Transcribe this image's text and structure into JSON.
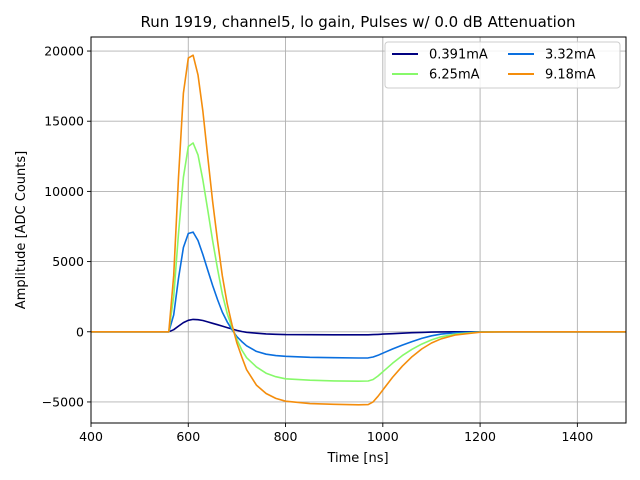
{
  "chart_data": {
    "type": "line",
    "title": "Run 1919, channel5, lo gain, Pulses w/ 0.0 dB Attenuation",
    "xlabel": "Time [ns]",
    "ylabel": "Amplitude [ADC Counts]",
    "xlim": [
      400,
      1500
    ],
    "ylim": [
      -6500,
      21000
    ],
    "xticks": [
      400,
      600,
      800,
      1000,
      1200,
      1400
    ],
    "yticks": [
      -5000,
      0,
      5000,
      10000,
      15000,
      20000
    ],
    "ytick_labels": [
      "−5000",
      "0",
      "5000",
      "10000",
      "15000",
      "20000"
    ],
    "grid": true,
    "legend_position": "top-right",
    "legend_columns": 2,
    "series": [
      {
        "name": "0.391mA",
        "color": "#000080",
        "x": [
          400,
          500,
          560,
          570,
          580,
          590,
          600,
          610,
          620,
          630,
          640,
          650,
          660,
          670,
          680,
          690,
          700,
          710,
          720,
          740,
          760,
          780,
          800,
          850,
          900,
          950,
          970,
          980,
          990,
          1000,
          1020,
          1040,
          1060,
          1080,
          1100,
          1120,
          1150,
          1200,
          1250,
          1300,
          1400,
          1500
        ],
        "values": [
          0,
          0,
          0,
          150,
          400,
          650,
          820,
          880,
          860,
          800,
          700,
          600,
          500,
          400,
          300,
          200,
          100,
          20,
          -40,
          -100,
          -150,
          -180,
          -200,
          -210,
          -215,
          -218,
          -215,
          -200,
          -185,
          -170,
          -135,
          -100,
          -70,
          -45,
          -25,
          -12,
          -4,
          0,
          0,
          0,
          0,
          0
        ]
      },
      {
        "name": "3.32mA",
        "color": "#0a6fdf",
        "x": [
          400,
          500,
          560,
          570,
          580,
          590,
          600,
          610,
          620,
          630,
          640,
          650,
          660,
          670,
          680,
          690,
          700,
          710,
          720,
          740,
          760,
          780,
          800,
          850,
          900,
          950,
          970,
          980,
          990,
          1000,
          1020,
          1040,
          1060,
          1080,
          1100,
          1120,
          1150,
          1200,
          1250,
          1300,
          1400,
          1500
        ],
        "values": [
          0,
          0,
          0,
          1200,
          3800,
          6000,
          7000,
          7100,
          6500,
          5500,
          4400,
          3300,
          2300,
          1400,
          700,
          150,
          -350,
          -700,
          -1000,
          -1400,
          -1600,
          -1700,
          -1750,
          -1820,
          -1850,
          -1870,
          -1860,
          -1800,
          -1680,
          -1530,
          -1230,
          -950,
          -700,
          -470,
          -290,
          -170,
          -70,
          -5,
          0,
          0,
          0,
          0
        ]
      },
      {
        "name": "6.25mA",
        "color": "#87f96a",
        "x": [
          400,
          500,
          560,
          570,
          580,
          590,
          600,
          610,
          620,
          630,
          640,
          650,
          660,
          670,
          680,
          690,
          700,
          710,
          720,
          740,
          760,
          780,
          800,
          850,
          900,
          950,
          970,
          980,
          990,
          1000,
          1020,
          1040,
          1060,
          1080,
          1100,
          1120,
          1150,
          1200,
          1250,
          1300,
          1400,
          1500
        ],
        "values": [
          0,
          0,
          0,
          2500,
          7000,
          11000,
          13200,
          13450,
          12600,
          10800,
          8700,
          6500,
          4500,
          2700,
          1300,
          300,
          -550,
          -1300,
          -1850,
          -2500,
          -2950,
          -3200,
          -3350,
          -3450,
          -3500,
          -3520,
          -3510,
          -3400,
          -3150,
          -2850,
          -2250,
          -1700,
          -1250,
          -880,
          -580,
          -360,
          -160,
          -20,
          0,
          0,
          0,
          0
        ]
      },
      {
        "name": "9.18mA",
        "color": "#f48d0c",
        "x": [
          400,
          500,
          560,
          570,
          580,
          590,
          600,
          610,
          620,
          630,
          640,
          650,
          660,
          670,
          680,
          690,
          700,
          710,
          720,
          740,
          760,
          780,
          800,
          850,
          900,
          950,
          970,
          980,
          990,
          1000,
          1020,
          1040,
          1060,
          1080,
          1100,
          1120,
          1150,
          1200,
          1250,
          1300,
          1400,
          1500
        ],
        "values": [
          0,
          0,
          0,
          4000,
          11000,
          17000,
          19500,
          19700,
          18300,
          15700,
          12500,
          9300,
          6500,
          4000,
          2000,
          500,
          -800,
          -1800,
          -2700,
          -3800,
          -4400,
          -4750,
          -4950,
          -5120,
          -5170,
          -5200,
          -5190,
          -5000,
          -4600,
          -4150,
          -3250,
          -2450,
          -1780,
          -1230,
          -800,
          -500,
          -220,
          -30,
          0,
          0,
          0,
          0
        ]
      }
    ]
  }
}
